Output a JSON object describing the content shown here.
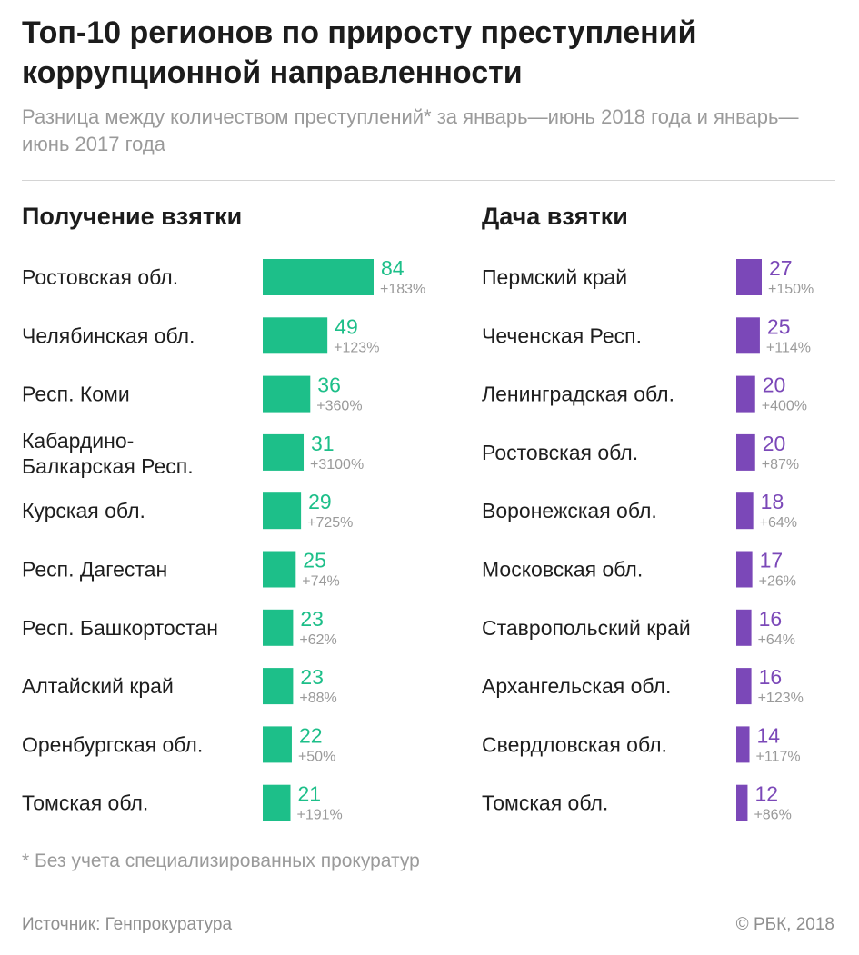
{
  "title": "Топ-10 регионов по приросту преступлений коррупционной направленности",
  "subtitle": "Разница между количеством преступлений* за январь—июнь 2018 года и январь—июнь 2017 года",
  "footnote": "* Без учета специализированных прокуратур",
  "source": "Источник: Генпрокуратура",
  "copyright": "© РБК, 2018",
  "colors": {
    "receiving": "#1dbf89",
    "giving": "#7b48b8"
  },
  "chart_data": [
    {
      "type": "bar",
      "title": "Получение взятки",
      "categories": [
        [
          "Ростовская обл."
        ],
        [
          "Челябинская обл."
        ],
        [
          "Респ. Коми"
        ],
        [
          "Кабардино-",
          "Балкарская Респ."
        ],
        [
          "Курская обл."
        ],
        [
          "Респ. Дагестан"
        ],
        [
          "Респ. Башкортостан"
        ],
        [
          "Алтайский край"
        ],
        [
          "Оренбургская обл."
        ],
        [
          "Томская обл."
        ]
      ],
      "values": [
        84,
        49,
        36,
        31,
        29,
        25,
        23,
        23,
        22,
        21
      ],
      "labels": [
        "84",
        "49",
        "36",
        "31",
        "29",
        "25",
        "23",
        "23",
        "22",
        "21"
      ],
      "change": [
        "+183%",
        "+123%",
        "+360%",
        "+3100%",
        "+725%",
        "+74%",
        "+62%",
        "+88%",
        "+50%",
        "+191%"
      ],
      "color": "#1dbf89"
    },
    {
      "type": "bar",
      "title": "Дача взятки",
      "categories": [
        [
          "Пермский край"
        ],
        [
          "Чеченская Респ."
        ],
        [
          "Ленинградская обл."
        ],
        [
          "Ростовская обл."
        ],
        [
          "Воронежская обл."
        ],
        [
          "Московская обл."
        ],
        [
          "Ставропольский край"
        ],
        [
          "Архангельская обл."
        ],
        [
          "Свердловская обл."
        ],
        [
          "Томская обл."
        ]
      ],
      "values": [
        27,
        25,
        20,
        20,
        18,
        17,
        16,
        16,
        14,
        12
      ],
      "labels": [
        "27",
        "25",
        "20",
        "20",
        "18",
        "17",
        "16",
        "16",
        "14",
        "12"
      ],
      "change": [
        "+150%",
        "+114%",
        "+400%",
        "+87%",
        "+64%",
        "+26%",
        "+64%",
        "+123%",
        "+117%",
        "+86%"
      ],
      "color": "#7b48b8"
    }
  ]
}
